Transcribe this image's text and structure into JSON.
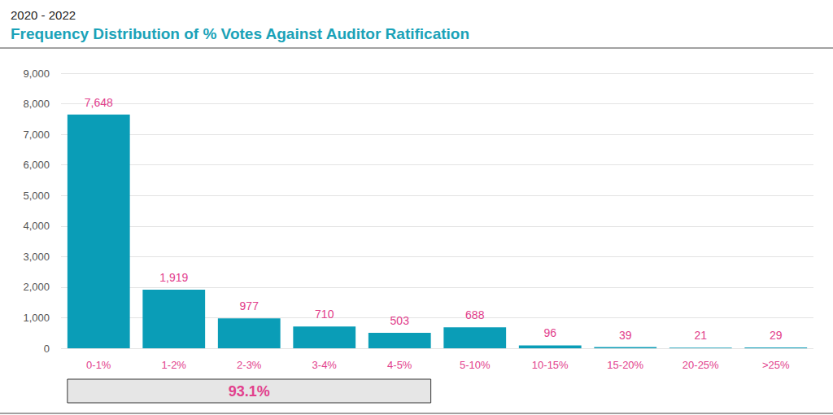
{
  "chart_data": {
    "type": "bar",
    "subtitle": "2020 - 2022",
    "title": "Frequency Distribution of % Votes Against Auditor Ratification",
    "categories": [
      "0-1%",
      "1-2%",
      "2-3%",
      "3-4%",
      "4-5%",
      "5-10%",
      "10-15%",
      "15-20%",
      "20-25%",
      ">25%"
    ],
    "values": [
      7648,
      1919,
      977,
      710,
      503,
      688,
      96,
      39,
      21,
      29
    ],
    "value_labels": [
      "7,648",
      "1,919",
      "977",
      "710",
      "503",
      "688",
      "96",
      "39",
      "21",
      "29"
    ],
    "color": "#0a9db7",
    "data_labels": true,
    "ylim": [
      0,
      9000
    ],
    "yticks": [
      0,
      {
        "value": 1000,
        "label": "1,000"
      },
      {
        "value": 2000,
        "label": "2,000"
      },
      {
        "value": 3000,
        "label": "3,000"
      },
      {
        "value": 4000,
        "label": "4,000"
      },
      {
        "value": 5000,
        "label": "5,000"
      },
      {
        "value": 6000,
        "label": "6,000"
      },
      {
        "value": 7000,
        "label": "7,000"
      },
      {
        "value": 8000,
        "label": "8,000"
      },
      {
        "value": 9000,
        "label": "9,000"
      }
    ],
    "grid": true,
    "annotations": [
      {
        "text": "93.1%",
        "from": "0-1%",
        "to": "4-5%"
      }
    ]
  }
}
